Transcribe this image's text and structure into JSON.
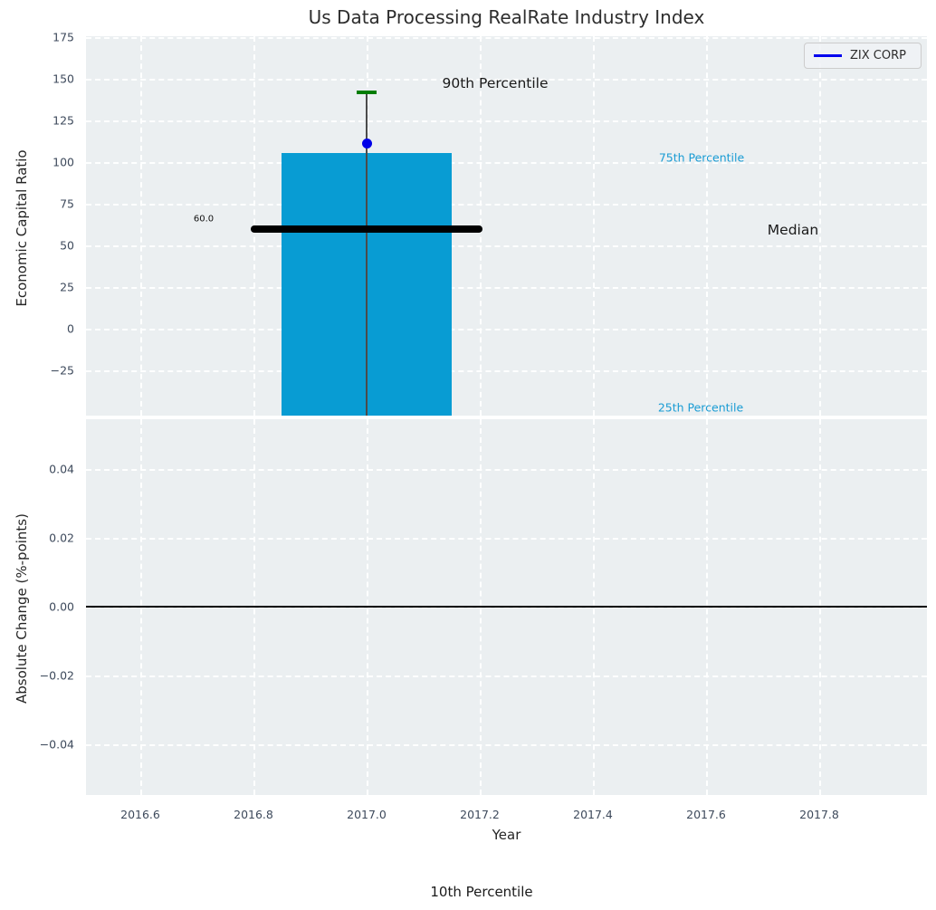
{
  "chart_data": {
    "type": "bar",
    "title": "Us Data Processing RealRate Industry Index",
    "xlabel": "Year",
    "xticks": [
      2016.6,
      2016.8,
      2017.0,
      2017.2,
      2017.4,
      2017.6,
      2017.8
    ],
    "xtick_labels": [
      "2016.6",
      "2016.8",
      "2017.0",
      "2017.2",
      "2017.4",
      "2017.6",
      "2017.8"
    ],
    "xlim": [
      2016.5,
      2017.99
    ],
    "top_subplot": {
      "ylabel": "Economic Capital Ratio",
      "yticks": [
        175,
        150,
        125,
        100,
        75,
        50,
        25,
        0,
        -25
      ],
      "ytick_labels": [
        "175",
        "150",
        "125",
        "100",
        "75",
        "50",
        "25",
        "0",
        "−25"
      ],
      "ylim": [
        -52,
        175
      ],
      "bar": {
        "x": 2017.0,
        "width": 0.3,
        "top_value": 105.5,
        "bottom_clipped_below_ylim": true,
        "color": "#089cd3"
      },
      "company_point": {
        "name": "ZIX CORP",
        "x": 2017.0,
        "y": 111,
        "color": "#0000e8"
      },
      "percentiles": {
        "p90": 142,
        "p75": 105.5,
        "median": 60.0,
        "p25": "below axis (clipped)",
        "p10": "below axis (clipped)"
      },
      "median_line": {
        "value": 60.0,
        "x_from": 2016.8,
        "x_to": 2017.2,
        "color": "#000000",
        "label": "60.0"
      },
      "error_bar": {
        "x": 2017.0,
        "top_cap_value": 142,
        "cap_color": "#007d00",
        "line_color": "#4b4b4b"
      }
    },
    "bottom_subplot": {
      "ylabel": "Absolute Change (%-points)",
      "yticks": [
        0.04,
        0.02,
        0.0,
        -0.02,
        -0.04
      ],
      "ytick_labels": [
        "0.04",
        "0.02",
        "0.00",
        "−0.02",
        "−0.04"
      ],
      "ylim": [
        -0.055,
        0.055
      ],
      "zero_line_value": 0.0
    },
    "annotations": {
      "p90_label": "90th Percentile",
      "p75_label": "75th Percentile",
      "median_label": "Median",
      "p25_label": "25th Percentile",
      "p10_label": "10th Percentile",
      "median_value_label": "60.0"
    },
    "legend": {
      "label": "ZIX CORP",
      "line_color": "#0000ee",
      "position": "upper right"
    },
    "style": {
      "plot_background": "#ebeff1",
      "grid_color": "#ffffff",
      "grid_style": "dashed",
      "tick_text_color": "#3e4a5c",
      "cyan_text_color": "#1a9cd4",
      "bar_color": "#089cd3",
      "marker_color": "#0000e8",
      "cap_color": "#007d00"
    }
  }
}
